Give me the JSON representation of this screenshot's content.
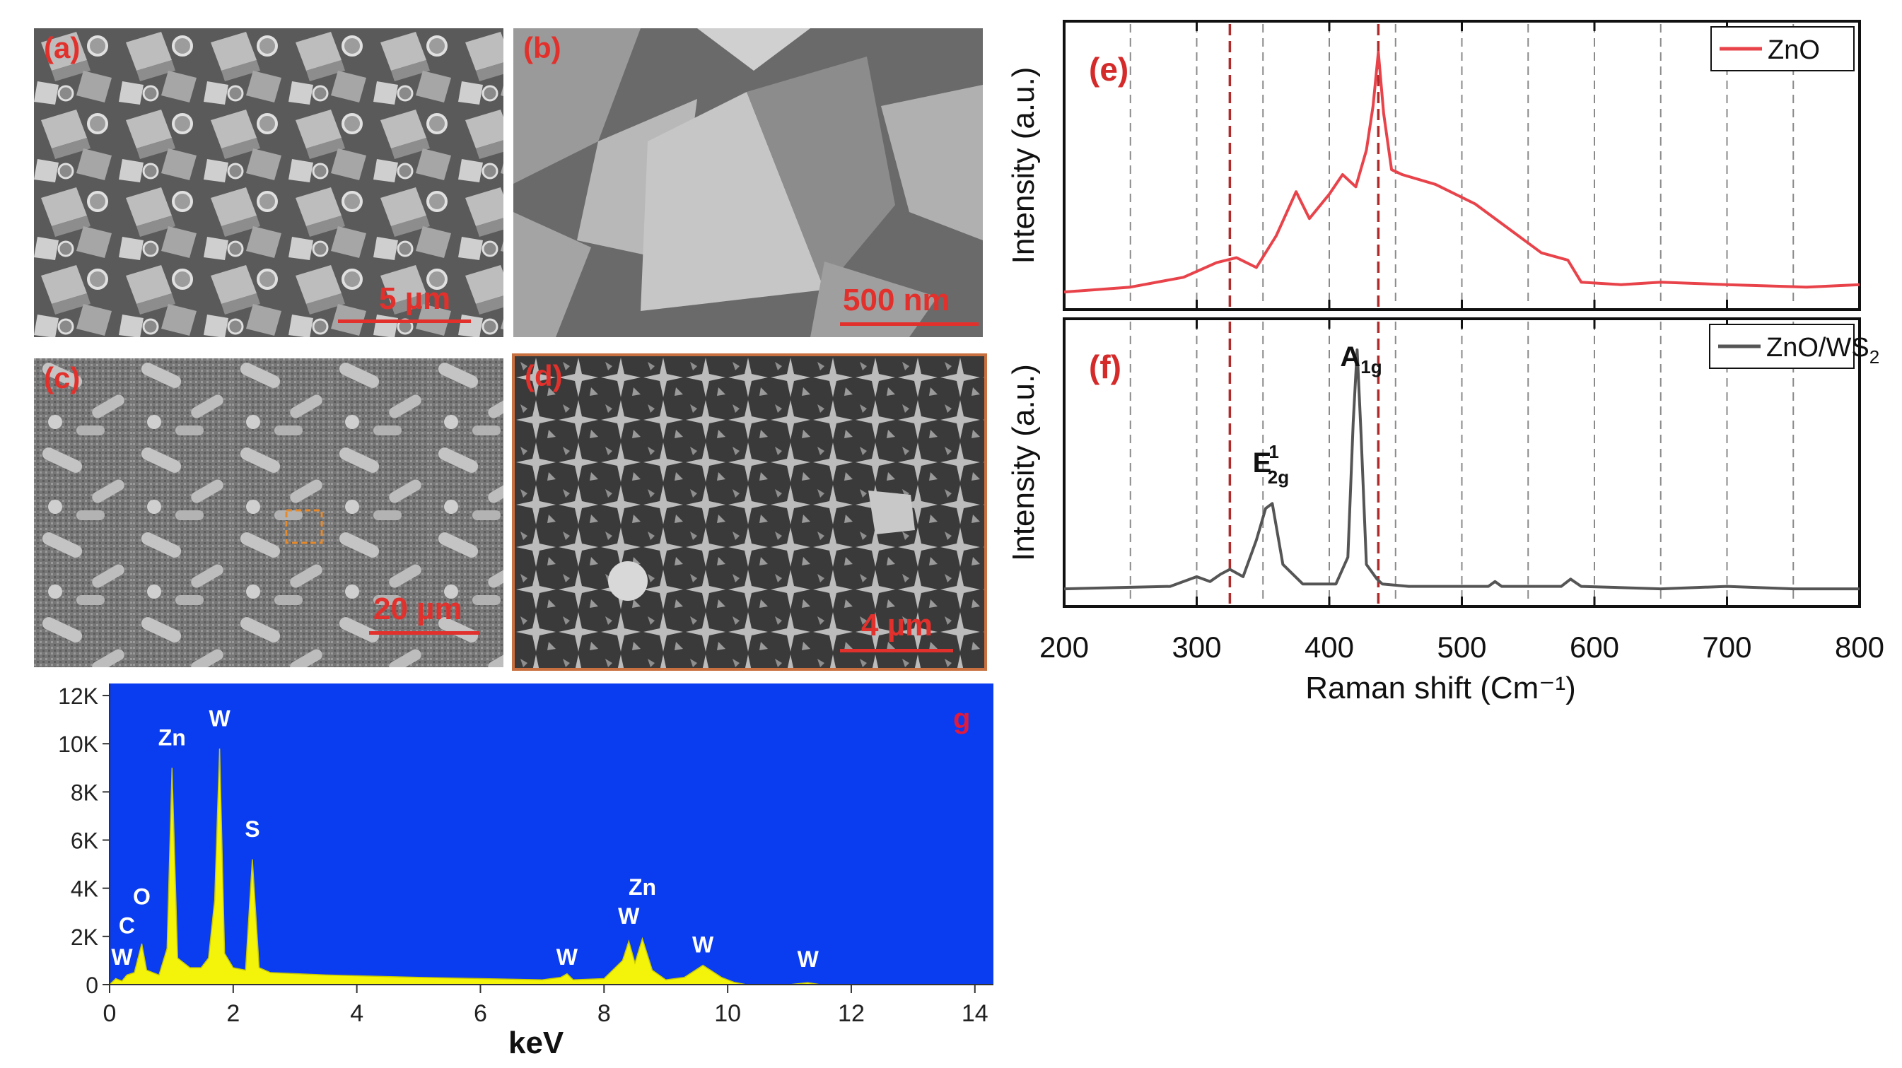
{
  "sem_panels": [
    {
      "id": "a",
      "label": "(a)",
      "scale_bar": "5 µm"
    },
    {
      "id": "b",
      "label": "(b)",
      "scale_bar": "500 nm"
    },
    {
      "id": "c",
      "label": "(c)",
      "scale_bar": "20 µm"
    },
    {
      "id": "d",
      "label": "(d)",
      "scale_bar": "4 µm"
    }
  ],
  "chart_data": [
    {
      "type": "line",
      "panel": "(e)",
      "ylabel": "Intensity (a.u.)",
      "xlabel": "Raman shift (Cm⁻¹)",
      "xlim": [
        200,
        800
      ],
      "xticks": [
        200,
        300,
        400,
        500,
        600,
        700,
        800
      ],
      "grid_x": [
        250,
        300,
        350,
        400,
        450,
        500,
        550,
        600,
        650,
        700,
        750
      ],
      "reference_lines": [
        325,
        437
      ],
      "legend": "top-right",
      "series": [
        {
          "name": "ZnO",
          "color": "#e8434a",
          "x": [
            200,
            250,
            290,
            315,
            330,
            345,
            360,
            375,
            385,
            400,
            410,
            420,
            428,
            433,
            437,
            441,
            447,
            455,
            480,
            510,
            540,
            560,
            580,
            590,
            620,
            650,
            700,
            760,
            800
          ],
          "y": [
            0.02,
            0.04,
            0.08,
            0.14,
            0.16,
            0.12,
            0.25,
            0.43,
            0.32,
            0.42,
            0.5,
            0.45,
            0.6,
            0.78,
            1.0,
            0.75,
            0.52,
            0.5,
            0.46,
            0.38,
            0.26,
            0.18,
            0.15,
            0.06,
            0.05,
            0.06,
            0.05,
            0.04,
            0.05
          ]
        }
      ]
    },
    {
      "type": "line",
      "panel": "(f)",
      "ylabel": "Intensity (a.u.)",
      "xlabel": "Raman shift (Cm⁻¹)",
      "xlim": [
        200,
        800
      ],
      "xticks": [
        200,
        300,
        400,
        500,
        600,
        700,
        800
      ],
      "grid_x": [
        250,
        300,
        350,
        400,
        450,
        500,
        550,
        600,
        650,
        700,
        750
      ],
      "reference_lines": [
        325,
        437
      ],
      "legend": "top-right",
      "annotations": [
        {
          "base": "E",
          "sup": "1",
          "sub": "2g",
          "x": 355
        },
        {
          "base": "A",
          "sub": "1g",
          "x": 421
        }
      ],
      "series": [
        {
          "name": "ZnO/WS",
          "name_sub": "2",
          "color": "#555555",
          "x": [
            200,
            280,
            300,
            310,
            318,
            325,
            335,
            345,
            352,
            357,
            365,
            380,
            405,
            414,
            418,
            421,
            424,
            428,
            436,
            440,
            460,
            520,
            525,
            530,
            575,
            582,
            590,
            650,
            700,
            750,
            800
          ],
          "y": [
            0.02,
            0.03,
            0.07,
            0.05,
            0.08,
            0.1,
            0.07,
            0.22,
            0.35,
            0.37,
            0.12,
            0.04,
            0.04,
            0.15,
            0.7,
            1.0,
            0.65,
            0.12,
            0.06,
            0.04,
            0.03,
            0.03,
            0.05,
            0.03,
            0.03,
            0.06,
            0.03,
            0.02,
            0.03,
            0.02,
            0.02
          ]
        }
      ]
    },
    {
      "type": "area",
      "panel": "g",
      "xlabel": "keV",
      "xlim": [
        0,
        14.3
      ],
      "ylim": [
        0,
        12500
      ],
      "xticks": [
        0,
        2,
        4,
        6,
        8,
        10,
        12,
        14
      ],
      "yticks": [
        0,
        2000,
        4000,
        6000,
        8000,
        10000,
        12000
      ],
      "ytick_labels": [
        "0",
        "2K",
        "4K",
        "6K",
        "8K",
        "10K",
        "12K"
      ],
      "background": "#0a3cf0",
      "fill": "#f4f40b",
      "x": [
        0,
        0.1,
        0.2,
        0.28,
        0.4,
        0.52,
        0.6,
        0.8,
        0.93,
        1.01,
        1.1,
        1.3,
        1.48,
        1.6,
        1.7,
        1.78,
        1.86,
        2.0,
        2.2,
        2.31,
        2.42,
        2.6,
        3.5,
        5,
        7,
        7.3,
        7.4,
        7.5,
        8,
        8.3,
        8.4,
        8.5,
        8.62,
        8.78,
        9,
        9.3,
        9.6,
        9.9,
        10.1,
        10.3,
        11,
        11.3,
        11.5,
        14.3
      ],
      "y": [
        0,
        250,
        150,
        400,
        500,
        1700,
        600,
        400,
        1500,
        9000,
        1100,
        700,
        700,
        1100,
        3500,
        9800,
        1300,
        700,
        600,
        5200,
        700,
        500,
        400,
        300,
        200,
        300,
        450,
        200,
        250,
        1000,
        1800,
        900,
        1900,
        600,
        200,
        300,
        800,
        300,
        100,
        0,
        0,
        80,
        0,
        0
      ],
      "peaks": [
        {
          "label": "W",
          "x": 0.2,
          "y": 300
        },
        {
          "label": "C",
          "x": 0.28,
          "y": 1600
        },
        {
          "label": "O",
          "x": 0.52,
          "y": 2800
        },
        {
          "label": "Zn",
          "x": 1.01,
          "y": 9400
        },
        {
          "label": "W",
          "x": 1.78,
          "y": 10200
        },
        {
          "label": "S",
          "x": 2.31,
          "y": 5600
        },
        {
          "label": "W",
          "x": 7.4,
          "y": 300
        },
        {
          "label": "W",
          "x": 8.4,
          "y": 2000
        },
        {
          "label": "Zn",
          "x": 8.62,
          "y": 3200
        },
        {
          "label": "W",
          "x": 9.6,
          "y": 800
        },
        {
          "label": "W",
          "x": 11.3,
          "y": 200
        }
      ]
    }
  ]
}
